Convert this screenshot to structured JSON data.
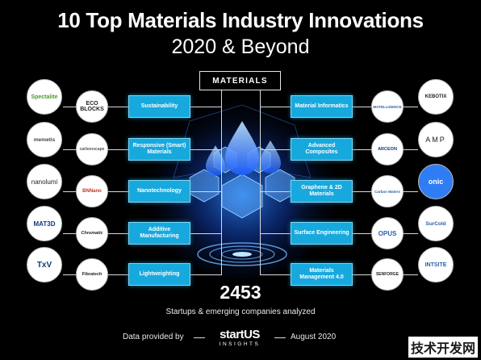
{
  "header": {
    "title": "10 Top Materials Industry Innovations",
    "subtitle": "2020 & Beyond"
  },
  "center": {
    "category": "MATERIALS"
  },
  "innovations_left": [
    {
      "label": "Sustainability",
      "startups": [
        "Spectalite",
        "ECO BLOCKS"
      ]
    },
    {
      "label": "Responsive (Smart) Materials",
      "startups": [
        "memetis",
        "carbonscape"
      ]
    },
    {
      "label": "Nanotechnology",
      "startups": [
        "nanolumi",
        "BNNano"
      ]
    },
    {
      "label": "Additive Manufacturing",
      "startups": [
        "MAT3D",
        "Chromatic"
      ]
    },
    {
      "label": "Lightweighting",
      "startups": [
        "TxV",
        "Fibratech"
      ]
    }
  ],
  "innovations_right": [
    {
      "label": "Material Informatics",
      "startups": [
        "MATELLIGENCE",
        "KEBOTIX"
      ]
    },
    {
      "label": "Advanced Composites",
      "startups": [
        "ARCEON",
        "AMP"
      ]
    },
    {
      "label": "Graphene & 2D Materials",
      "startups": [
        "Carbon Waters",
        "onic"
      ]
    },
    {
      "label": "Surface Engineering",
      "startups": [
        "OPUS",
        "SurCold"
      ]
    },
    {
      "label": "Materials Management 4.0",
      "startups": [
        "SENFORGE",
        "INTSITE"
      ]
    }
  ],
  "stats": {
    "count": "2453",
    "caption": "Startups & emerging companies analyzed"
  },
  "footer": {
    "provided_by": "Data provided by",
    "logo_main": "startUS",
    "logo_sub": "INSIGHTS",
    "date": "August 2020"
  },
  "watermark": "技术开发网",
  "colors": {
    "background": "#000000",
    "accent": "#17a9dd",
    "glow": "#1e6bff"
  }
}
